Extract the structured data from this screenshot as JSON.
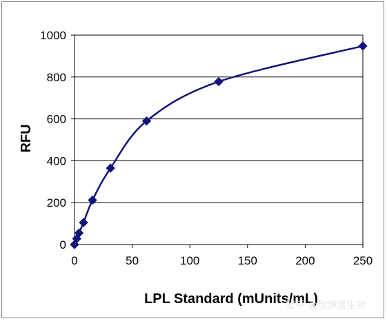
{
  "chart_data": {
    "type": "scatter",
    "title": "",
    "xlabel": "LPL Standard (mUnits/mL)",
    "ylabel": "RFU",
    "xlim": [
      0,
      250
    ],
    "ylim": [
      0,
      1000
    ],
    "xticks": [
      0,
      50,
      100,
      150,
      200,
      250
    ],
    "yticks": [
      0,
      200,
      400,
      600,
      800,
      1000
    ],
    "grid": "horizontal",
    "legend": "none",
    "series": [
      {
        "marker": "diamond",
        "line": "smooth",
        "color": "#12127a",
        "x": [
          0,
          1.95,
          3.9,
          7.8,
          15.6,
          31.25,
          62.5,
          125,
          250
        ],
        "y": [
          0,
          28,
          55,
          105,
          212,
          365,
          590,
          778,
          948
        ]
      }
    ]
  },
  "watermark": "知乎 @欣博盛生物"
}
